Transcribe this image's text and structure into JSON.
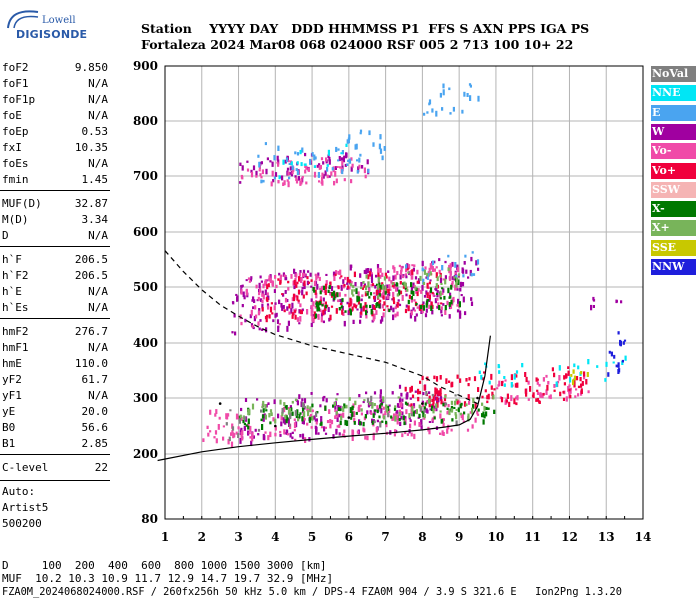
{
  "logo": {
    "top": "Lowell",
    "bottom": "DIGISONDE"
  },
  "header": {
    "row1": "Station    YYYY DAY   DDD HHMMSS P1  FFS S AXN PPS IGA PS",
    "row2": "Fortaleza 2024 Mar08 068 024000 RSF 005 2 713 100 10+ 22"
  },
  "params": [
    {
      "k": "foF2",
      "v": "9.850"
    },
    {
      "k": "foF1",
      "v": "N/A"
    },
    {
      "k": "foF1p",
      "v": "N/A"
    },
    {
      "k": "foE",
      "v": "N/A"
    },
    {
      "k": "foEp",
      "v": "0.53"
    },
    {
      "k": "fxI",
      "v": "10.35"
    },
    {
      "k": "foEs",
      "v": "N/A"
    },
    {
      "k": "fmin",
      "v": "1.45"
    },
    {
      "k": "MUF(D)",
      "v": "32.87"
    },
    {
      "k": "M(D)",
      "v": "3.34"
    },
    {
      "k": "D",
      "v": "N/A"
    },
    {
      "k": "h`F",
      "v": "206.5"
    },
    {
      "k": "h`F2",
      "v": "206.5"
    },
    {
      "k": "h`E",
      "v": "N/A"
    },
    {
      "k": "h`Es",
      "v": "N/A"
    },
    {
      "k": "hmF2",
      "v": "276.7"
    },
    {
      "k": "hmF1",
      "v": "N/A"
    },
    {
      "k": "hmE",
      "v": "110.0"
    },
    {
      "k": "yF2",
      "v": "61.7"
    },
    {
      "k": "yF1",
      "v": "N/A"
    },
    {
      "k": "yE",
      "v": "20.0"
    },
    {
      "k": "B0",
      "v": "56.6"
    },
    {
      "k": "B1",
      "v": "2.85"
    },
    {
      "k": "C-level",
      "v": "22"
    }
  ],
  "auto": {
    "line1": "Auto:",
    "line2": "Artist5",
    "line3": "500200"
  },
  "footer": {
    "d_row": "D     100  200  400  600  800 1000 1500 3000 [km]",
    "muf_row": "MUF  10.2 10.3 10.9 11.7 12.9 14.7 19.7 32.9 [MHz]",
    "file_row": "FZA0M_2024068024000.RSF / 260fx256h 50 kHz 5.0 km / DPS-4 FZA0M 904 / 3.9 S 321.6 E   Ion2Png 1.3.20"
  },
  "legend": [
    {
      "label": "NoVal",
      "color": "#7f7f7f"
    },
    {
      "label": "NNE",
      "color": "#00e6f5"
    },
    {
      "label": "E",
      "color": "#4aa4f0"
    },
    {
      "label": "W",
      "color": "#a000a0"
    },
    {
      "label": "Vo-",
      "color": "#f04aa8"
    },
    {
      "label": "Vo+",
      "color": "#f0003c"
    },
    {
      "label": "SSW",
      "color": "#f5b4b4"
    },
    {
      "label": "X-",
      "color": "#007800"
    },
    {
      "label": "X+",
      "color": "#78b45a"
    },
    {
      "label": "SSE",
      "color": "#c8c800"
    },
    {
      "label": "NNW",
      "color": "#1e1edc"
    }
  ],
  "chart_data": {
    "type": "scatter",
    "xlabel": "",
    "ylabel": "",
    "xlim": [
      1,
      14
    ],
    "ylim": [
      80,
      900
    ],
    "x_ticks": [
      1,
      2,
      3,
      4,
      5,
      6,
      7,
      8,
      9,
      10,
      11,
      12,
      13,
      14
    ],
    "y_ticks": [
      80,
      200,
      300,
      400,
      500,
      600,
      700,
      800,
      900
    ],
    "grid": true,
    "series": [
      {
        "name": "W",
        "clusters": [
          [
            3.0,
            8.5,
            220,
            330
          ],
          [
            2.8,
            9.5,
            420,
            560
          ],
          [
            3.0,
            6.5,
            690,
            750
          ],
          [
            12.5,
            13.5,
            465,
            490
          ]
        ]
      },
      {
        "name": "Vo-",
        "clusters": [
          [
            2.0,
            9.5,
            220,
            300
          ],
          [
            3.0,
            9.0,
            430,
            550
          ],
          [
            3.0,
            6.5,
            680,
            740
          ],
          [
            10.0,
            12.5,
            290,
            350
          ]
        ]
      },
      {
        "name": "Vo+",
        "clusters": [
          [
            7.5,
            12.5,
            280,
            360
          ],
          [
            3.5,
            8.5,
            440,
            540
          ]
        ]
      },
      {
        "name": "E",
        "clusters": [
          [
            3.5,
            7.0,
            690,
            790
          ],
          [
            7.5,
            9.5,
            510,
            570
          ],
          [
            8.0,
            9.5,
            800,
            890
          ]
        ]
      },
      {
        "name": "NNE",
        "clusters": [
          [
            9.5,
            13.5,
            320,
            380
          ],
          [
            4.0,
            6.0,
            700,
            760
          ]
        ]
      },
      {
        "name": "X-",
        "clusters": [
          [
            3.0,
            10.0,
            250,
            300
          ],
          [
            5.0,
            9.0,
            450,
            520
          ]
        ]
      },
      {
        "name": "X+",
        "clusters": [
          [
            3.0,
            10.0,
            260,
            310
          ],
          [
            6.0,
            9.0,
            480,
            540
          ]
        ]
      },
      {
        "name": "NNW",
        "clusters": [
          [
            13.0,
            13.5,
            330,
            440
          ]
        ]
      },
      {
        "name": "SSE",
        "clusters": [
          [
            12.0,
            12.5,
            330,
            360
          ]
        ]
      },
      {
        "name": "NoVal",
        "clusters": [
          [
            2.5,
            9.0,
            230,
            320
          ]
        ]
      }
    ],
    "profile_solid": [
      [
        0.8,
        188
      ],
      [
        2,
        204
      ],
      [
        3,
        213
      ],
      [
        4,
        220
      ],
      [
        5,
        226
      ],
      [
        6,
        232
      ],
      [
        7,
        237
      ],
      [
        8,
        243
      ],
      [
        8.6,
        248
      ],
      [
        9.0,
        252
      ],
      [
        9.3,
        262
      ],
      [
        9.5,
        285
      ],
      [
        9.7,
        340
      ],
      [
        9.85,
        413
      ]
    ],
    "profile_dashed": [
      [
        1.0,
        566
      ],
      [
        1.5,
        528
      ],
      [
        2.0,
        495
      ],
      [
        2.5,
        468
      ],
      [
        3.0,
        448
      ],
      [
        3.5,
        430
      ],
      [
        4.0,
        415
      ],
      [
        5.0,
        395
      ],
      [
        6.0,
        380
      ],
      [
        7.0,
        365
      ],
      [
        8.0,
        340
      ],
      [
        8.5,
        320
      ],
      [
        9.0,
        305
      ],
      [
        9.5,
        290
      ]
    ],
    "dots_ordinary_profile": [
      [
        2.5,
        290
      ],
      [
        4.0,
        250
      ],
      [
        6.0,
        265
      ],
      [
        8.0,
        290
      ],
      [
        9.5,
        300
      ]
    ]
  }
}
